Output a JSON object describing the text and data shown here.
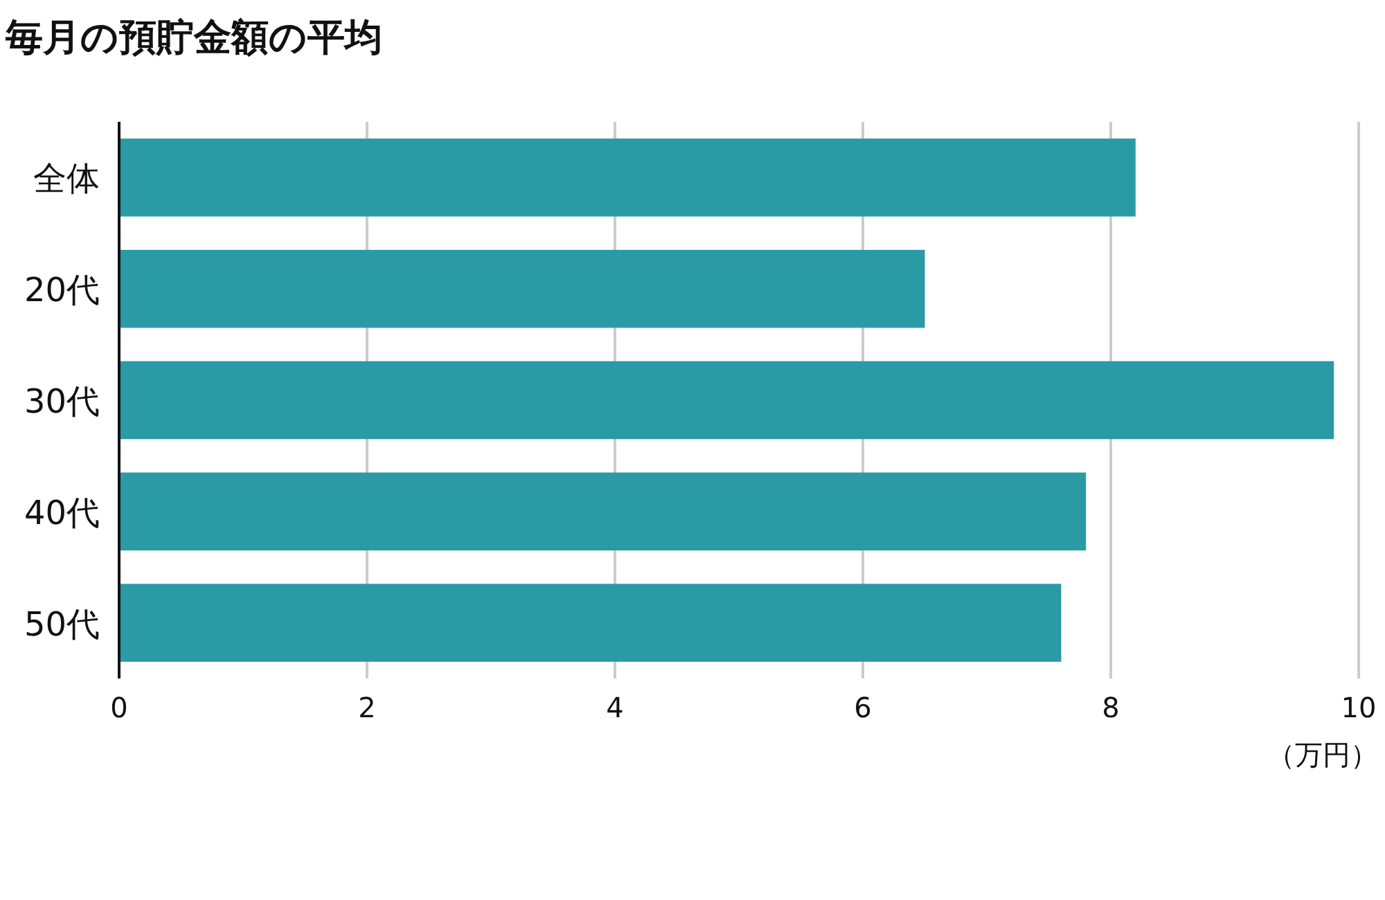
{
  "chart_data": {
    "type": "bar",
    "orientation": "horizontal",
    "title": "毎月の預貯金額の平均",
    "xlabel": "（万円）",
    "categories": [
      "全体",
      "20代",
      "30代",
      "40代",
      "50代"
    ],
    "values": [
      8.2,
      6.5,
      9.8,
      7.8,
      7.6
    ],
    "color": "#2a9aa5",
    "xlim": [
      0,
      10
    ],
    "xticks": [
      0,
      2,
      4,
      6,
      8,
      10
    ],
    "grid": "x"
  }
}
